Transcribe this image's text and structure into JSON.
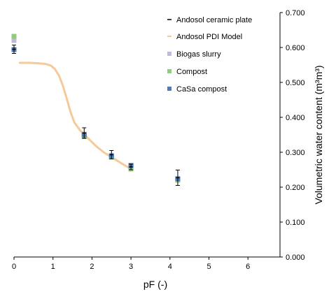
{
  "chart_data": {
    "type": "scatter",
    "xlabel": "pF (-)",
    "ylabel": "Volumetric water content (m³m³)",
    "xlim": [
      0,
      7
    ],
    "ylim": [
      0,
      0.7
    ],
    "y_axis_side": "right",
    "x_ticks": [
      "0",
      "1",
      "2",
      "3",
      "4",
      "5",
      "6"
    ],
    "y_ticks": [
      "0.000",
      "0.100",
      "0.200",
      "0.300",
      "0.400",
      "0.500",
      "0.600",
      "0.700"
    ],
    "grid": false,
    "legend_position": "top-right",
    "colors": {
      "ceramic": "#000000",
      "model": "#f5c99a",
      "biogas": "#c3b8d8",
      "compost": "#8fcd7c",
      "casa": "#4e7ab9"
    },
    "series": [
      {
        "name": "Andosol ceramic plate",
        "kind": "errorbar",
        "points": [
          {
            "x": 0.0,
            "y": 0.595,
            "err": 0.012
          },
          {
            "x": 1.8,
            "y": 0.355,
            "err": 0.015
          },
          {
            "x": 2.5,
            "y": 0.293,
            "err": 0.012
          },
          {
            "x": 3.0,
            "y": 0.258,
            "err": 0.008
          },
          {
            "x": 4.2,
            "y": 0.227,
            "err": 0.022
          }
        ]
      },
      {
        "name": "Andosol PDI Model",
        "kind": "line",
        "points": [
          [
            0.15,
            0.556
          ],
          [
            0.4,
            0.556
          ],
          [
            0.6,
            0.555
          ],
          [
            0.8,
            0.553
          ],
          [
            0.95,
            0.548
          ],
          [
            1.05,
            0.538
          ],
          [
            1.15,
            0.52
          ],
          [
            1.25,
            0.492
          ],
          [
            1.35,
            0.455
          ],
          [
            1.45,
            0.415
          ],
          [
            1.55,
            0.385
          ],
          [
            1.7,
            0.362
          ],
          [
            1.9,
            0.34
          ],
          [
            2.1,
            0.318
          ],
          [
            2.3,
            0.3
          ],
          [
            2.5,
            0.286
          ],
          [
            2.7,
            0.272
          ],
          [
            2.85,
            0.262
          ],
          [
            3.0,
            0.252
          ]
        ]
      },
      {
        "name": "Biogas slurry",
        "kind": "marker",
        "points": [
          [
            0.0,
            0.62
          ],
          [
            1.8,
            0.352
          ],
          [
            2.5,
            0.288
          ],
          [
            3.0,
            0.262
          ],
          [
            4.2,
            0.222
          ]
        ]
      },
      {
        "name": "Compost",
        "kind": "marker",
        "points": [
          [
            0.0,
            0.632
          ],
          [
            1.8,
            0.345
          ],
          [
            2.5,
            0.286
          ],
          [
            3.0,
            0.252
          ],
          [
            4.2,
            0.22
          ]
        ]
      },
      {
        "name": "CaSa compost",
        "kind": "marker",
        "points": [
          [
            0.0,
            0.594
          ],
          [
            1.8,
            0.35
          ],
          [
            2.5,
            0.29
          ],
          [
            3.0,
            0.262
          ],
          [
            4.2,
            0.224
          ]
        ]
      }
    ]
  }
}
